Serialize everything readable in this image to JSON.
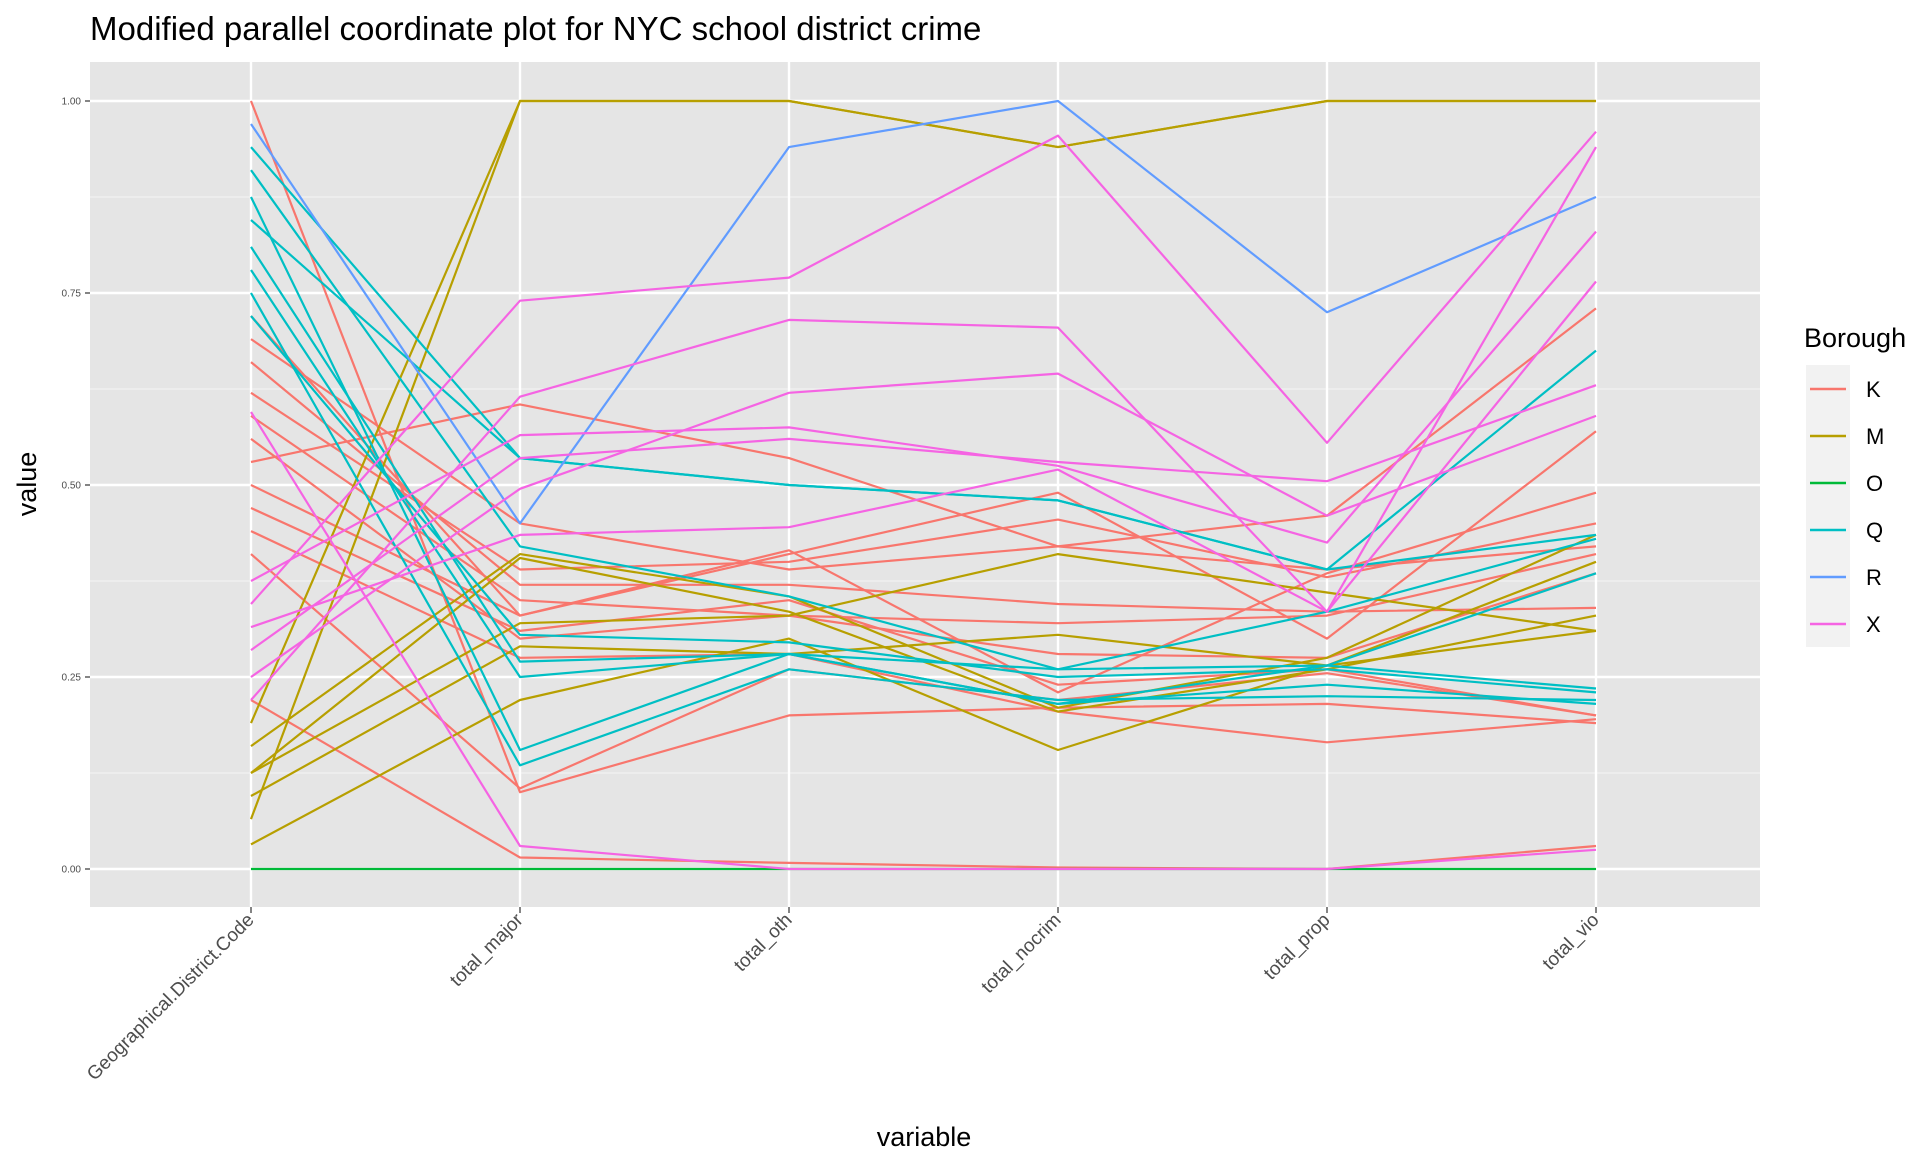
{
  "chart_data": {
    "type": "line",
    "title": "Modified parallel coordinate plot for NYC school district crime",
    "xlabel": "variable",
    "ylabel": "value",
    "categories": [
      "Geographical.District.Code",
      "total_major",
      "total_oth",
      "total_nocrim",
      "total_prop",
      "total_vio"
    ],
    "ylim": [
      0,
      1
    ],
    "yticks": [
      "0.00",
      "0.25",
      "0.50",
      "0.75",
      "1.00"
    ],
    "ytick_values": [
      0,
      0.25,
      0.5,
      0.75,
      1
    ],
    "grid": true,
    "legend": {
      "title": "Borough",
      "position": "right",
      "entries": [
        {
          "label": "K",
          "color": "#F8766D"
        },
        {
          "label": "M",
          "color": "#B79F00"
        },
        {
          "label": "O",
          "color": "#00BA38"
        },
        {
          "label": "Q",
          "color": "#00BFC4"
        },
        {
          "label": "R",
          "color": "#619CFF"
        },
        {
          "label": "X",
          "color": "#F564E3"
        }
      ]
    },
    "series": [
      {
        "group": "K",
        "values": [
          1.0,
          0.1,
          0.2,
          0.21,
          0.215,
          0.19
        ]
      },
      {
        "group": "K",
        "values": [
          0.72,
          0.33,
          0.41,
          0.49,
          0.3,
          0.57
        ]
      },
      {
        "group": "K",
        "values": [
          0.69,
          0.45,
          0.39,
          0.42,
          0.46,
          0.73
        ]
      },
      {
        "group": "K",
        "values": [
          0.66,
          0.37,
          0.37,
          0.345,
          0.335,
          0.34
        ]
      },
      {
        "group": "K",
        "values": [
          0.62,
          0.39,
          0.4,
          0.455,
          0.38,
          0.45
        ]
      },
      {
        "group": "K",
        "values": [
          0.59,
          0.35,
          0.33,
          0.32,
          0.33,
          0.41
        ]
      },
      {
        "group": "K",
        "values": [
          0.56,
          0.3,
          0.33,
          0.28,
          0.275,
          0.385
        ]
      },
      {
        "group": "K",
        "values": [
          0.53,
          0.605,
          0.535,
          0.42,
          0.39,
          0.42
        ]
      },
      {
        "group": "K",
        "values": [
          0.5,
          0.33,
          0.415,
          0.23,
          0.385,
          0.49
        ]
      },
      {
        "group": "K",
        "values": [
          0.47,
          0.31,
          0.35,
          0.24,
          0.26,
          0.2
        ]
      },
      {
        "group": "K",
        "values": [
          0.44,
          0.275,
          0.28,
          0.205,
          0.165,
          0.195
        ]
      },
      {
        "group": "K",
        "values": [
          0.41,
          0.105,
          0.26,
          0.22,
          0.255,
          0.2
        ]
      },
      {
        "group": "K",
        "values": [
          0.22,
          0.015,
          0.008,
          0.002,
          0.0,
          0.03
        ]
      },
      {
        "group": "M",
        "values": [
          0.19,
          1.0,
          1.0,
          0.94,
          1.0,
          1.0
        ]
      },
      {
        "group": "M",
        "values": [
          0.16,
          0.41,
          0.355,
          0.21,
          0.275,
          0.435
        ]
      },
      {
        "group": "M",
        "values": [
          0.125,
          0.32,
          0.33,
          0.41,
          0.36,
          0.31
        ]
      },
      {
        "group": "M",
        "values": [
          0.095,
          0.29,
          0.28,
          0.305,
          0.265,
          0.31
        ]
      },
      {
        "group": "M",
        "values": [
          0.065,
          1.0,
          1.0,
          0.94,
          1.0,
          1.0
        ]
      },
      {
        "group": "M",
        "values": [
          0.032,
          0.22,
          0.3,
          0.155,
          0.265,
          0.4
        ]
      },
      {
        "group": "M",
        "values": [
          0.125,
          0.405,
          0.335,
          0.205,
          0.26,
          0.33
        ]
      },
      {
        "group": "O",
        "values": [
          0.0,
          0.0,
          0.0,
          0.0,
          0.0,
          0.0
        ]
      },
      {
        "group": "Q",
        "values": [
          0.94,
          0.535,
          0.5,
          0.48,
          0.39,
          0.675
        ]
      },
      {
        "group": "Q",
        "values": [
          0.91,
          0.42,
          0.355,
          0.26,
          0.335,
          0.43
        ]
      },
      {
        "group": "Q",
        "values": [
          0.875,
          0.155,
          0.28,
          0.215,
          0.265,
          0.385
        ]
      },
      {
        "group": "Q",
        "values": [
          0.845,
          0.535,
          0.5,
          0.48,
          0.39,
          0.435
        ]
      },
      {
        "group": "Q",
        "values": [
          0.81,
          0.27,
          0.28,
          0.26,
          0.265,
          0.235
        ]
      },
      {
        "group": "Q",
        "values": [
          0.78,
          0.25,
          0.28,
          0.215,
          0.24,
          0.215
        ]
      },
      {
        "group": "Q",
        "values": [
          0.75,
          0.135,
          0.26,
          0.22,
          0.225,
          0.22
        ]
      },
      {
        "group": "Q",
        "values": [
          0.72,
          0.305,
          0.295,
          0.25,
          0.26,
          0.23
        ]
      },
      {
        "group": "R",
        "values": [
          0.97,
          0.45,
          0.94,
          1.0,
          0.725,
          0.875
        ]
      },
      {
        "group": "X",
        "values": [
          0.595,
          0.03,
          0.0,
          0.0,
          0.0,
          0.025
        ]
      },
      {
        "group": "X",
        "values": [
          0.375,
          0.565,
          0.575,
          0.525,
          0.425,
          0.83
        ]
      },
      {
        "group": "X",
        "values": [
          0.345,
          0.74,
          0.77,
          0.955,
          0.555,
          0.96
        ]
      },
      {
        "group": "X",
        "values": [
          0.315,
          0.435,
          0.445,
          0.52,
          0.335,
          0.94
        ]
      },
      {
        "group": "X",
        "values": [
          0.285,
          0.535,
          0.56,
          0.53,
          0.505,
          0.63
        ]
      },
      {
        "group": "X",
        "values": [
          0.25,
          0.495,
          0.62,
          0.645,
          0.46,
          0.59
        ]
      },
      {
        "group": "X",
        "values": [
          0.22,
          0.615,
          0.715,
          0.705,
          0.335,
          0.765
        ]
      }
    ]
  }
}
